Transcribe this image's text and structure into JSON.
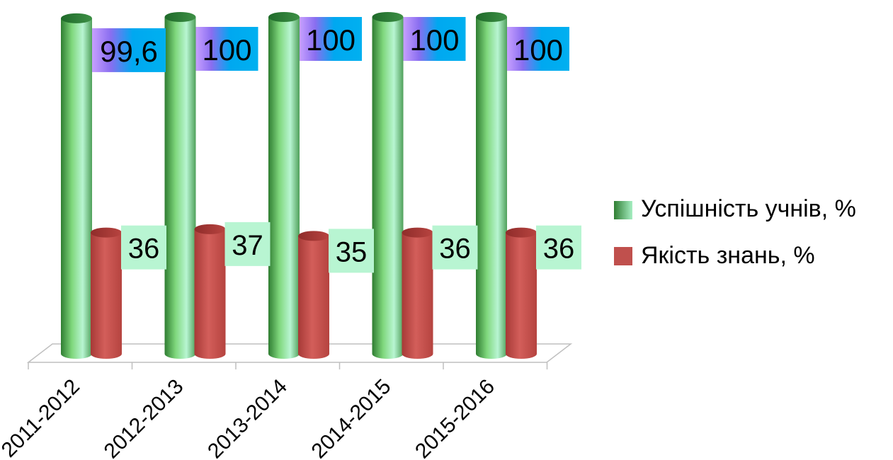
{
  "chart_data": {
    "type": "bar",
    "title": "",
    "xlabel": "",
    "ylabel": "",
    "categories": [
      "2011-2012",
      "2012-2013",
      "2013-2014",
      "2014-2015",
      "2015-2016"
    ],
    "series": [
      {
        "name": "Успішність учнів, %",
        "values": [
          99.6,
          100,
          100,
          100,
          100
        ],
        "labels": [
          "99,6",
          "100",
          "100",
          "100",
          "100"
        ],
        "color": "#5cb85c"
      },
      {
        "name": "Якість знань, %",
        "values": [
          36,
          37,
          35,
          36,
          36
        ],
        "labels": [
          "36",
          "37",
          "35",
          "36",
          "36"
        ],
        "color": "#c0504d"
      }
    ],
    "ylim": [
      0,
      100
    ],
    "grid": false,
    "legend_position": "right",
    "style": "3d-cylinder"
  }
}
